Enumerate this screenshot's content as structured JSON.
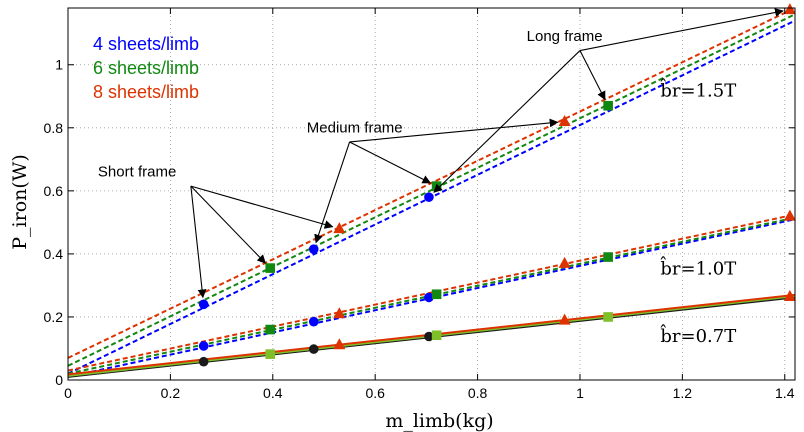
{
  "chart_data": {
    "type": "line",
    "xlabel": "m_limb(kg)",
    "ylabel": "P_iron(W)",
    "xlim": [
      0,
      1.42
    ],
    "ylim": [
      0,
      1.18
    ],
    "xticks": [
      "0",
      "0.2",
      "0.4",
      "0.6",
      "0.8",
      "1",
      "1.2",
      "1.4"
    ],
    "yticks": [
      "0",
      "0.2",
      "0.4",
      "0.6",
      "0.8",
      "1"
    ],
    "grid": "dotted",
    "legend_position": "top-left",
    "legend": [
      {
        "label": "4 sheets/limb",
        "color": "#0000ff"
      },
      {
        "label": "6 sheets/limb",
        "color": "#118811"
      },
      {
        "label": "8 sheets/limb",
        "color": "#dd3300"
      }
    ],
    "groups": [
      {
        "label": "b̂r=1.5T",
        "line_style": "dashed",
        "series": [
          {
            "name": "4 sheets/limb",
            "color": "#0000ff",
            "marker": "circle",
            "line": [
              [
                0,
                0.02
              ],
              [
                1.42,
                1.14
              ]
            ],
            "points": [
              [
                0.265,
                0.24
              ],
              [
                0.48,
                0.415
              ],
              [
                0.705,
                0.58
              ]
            ]
          },
          {
            "name": "6 sheets/limb",
            "color": "#118811",
            "marker": "square",
            "line": [
              [
                0,
                0.045
              ],
              [
                1.42,
                1.16
              ]
            ],
            "points": [
              [
                0.395,
                0.355
              ],
              [
                0.72,
                0.615
              ],
              [
                1.055,
                0.87
              ]
            ]
          },
          {
            "name": "8 sheets/limb",
            "color": "#dd3300",
            "marker": "triangle",
            "line": [
              [
                0,
                0.07
              ],
              [
                1.42,
                1.18
              ]
            ],
            "points": [
              [
                0.53,
                0.48
              ],
              [
                0.97,
                0.82
              ],
              [
                1.41,
                1.175
              ]
            ]
          }
        ]
      },
      {
        "label": "b̂r=1.0T",
        "line_style": "dashed",
        "series": [
          {
            "name": "4 sheets/limb",
            "color": "#0000ff",
            "marker": "circle",
            "line": [
              [
                0,
                0.01
              ],
              [
                1.42,
                0.51
              ]
            ],
            "points": [
              [
                0.265,
                0.108
              ],
              [
                0.48,
                0.185
              ],
              [
                0.705,
                0.262
              ]
            ]
          },
          {
            "name": "6 sheets/limb",
            "color": "#118811",
            "marker": "square",
            "line": [
              [
                0,
                0.02
              ],
              [
                1.42,
                0.515
              ]
            ],
            "points": [
              [
                0.395,
                0.16
              ],
              [
                0.72,
                0.272
              ],
              [
                1.055,
                0.39
              ]
            ]
          },
          {
            "name": "8 sheets/limb",
            "color": "#dd3300",
            "marker": "triangle",
            "line": [
              [
                0,
                0.03
              ],
              [
                1.42,
                0.525
              ]
            ],
            "points": [
              [
                0.53,
                0.21
              ],
              [
                0.97,
                0.37
              ],
              [
                1.41,
                0.52
              ]
            ]
          }
        ]
      },
      {
        "label": "b̂r=0.7T",
        "line_style": "solid",
        "series": [
          {
            "name": "4 sheets/limb",
            "color": "#1a1a1a",
            "marker": "circle",
            "line": [
              [
                0,
                0.01
              ],
              [
                1.42,
                0.262
              ]
            ],
            "points": [
              [
                0.265,
                0.058
              ],
              [
                0.48,
                0.098
              ],
              [
                0.705,
                0.138
              ]
            ]
          },
          {
            "name": "6 sheets/limb",
            "color": "#7fbf2a",
            "marker": "square",
            "line": [
              [
                0,
                0.013
              ],
              [
                1.42,
                0.266
              ]
            ],
            "points": [
              [
                0.395,
                0.082
              ],
              [
                0.72,
                0.142
              ],
              [
                1.055,
                0.2
              ]
            ]
          },
          {
            "name": "8 sheets/limb",
            "color": "#dd3300",
            "marker": "triangle",
            "line": [
              [
                0,
                0.018
              ],
              [
                1.42,
                0.27
              ]
            ],
            "points": [
              [
                0.53,
                0.112
              ],
              [
                0.97,
                0.19
              ],
              [
                1.41,
                0.265
              ]
            ]
          }
        ]
      }
    ],
    "annotations": [
      {
        "text": "Short frame",
        "targets": [
          [
            0.265,
            0.24
          ],
          [
            0.395,
            0.355
          ],
          [
            0.53,
            0.48
          ]
        ]
      },
      {
        "text": "Medium frame",
        "targets": [
          [
            0.48,
            0.415
          ],
          [
            0.72,
            0.615
          ],
          [
            0.97,
            0.82
          ]
        ]
      },
      {
        "text": "Long frame",
        "targets": [
          [
            0.705,
            0.58
          ],
          [
            1.055,
            0.87
          ],
          [
            1.41,
            1.175
          ]
        ]
      }
    ]
  }
}
